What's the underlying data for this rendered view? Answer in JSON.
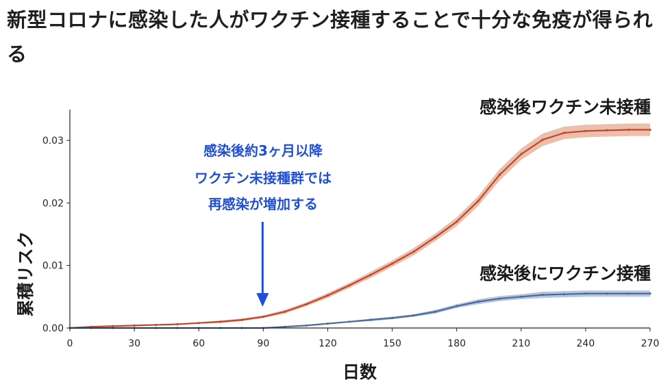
{
  "headline": "新型コロナに感染した人がワクチン接種することで十分な免疫が得られる",
  "chart_data": {
    "type": "line",
    "xlabel": "日数",
    "ylabel": "累積リスク",
    "xlim": [
      0,
      270
    ],
    "ylim": [
      0,
      0.035
    ],
    "x_ticks": [
      "0",
      "30",
      "60",
      "90",
      "120",
      "150",
      "180",
      "210",
      "240",
      "270"
    ],
    "y_ticks": [
      "0.00",
      "0.01",
      "0.02",
      "0.03"
    ],
    "grid": false,
    "x": [
      0,
      10,
      20,
      30,
      40,
      50,
      60,
      70,
      80,
      90,
      100,
      110,
      120,
      130,
      140,
      150,
      160,
      170,
      180,
      190,
      200,
      210,
      220,
      230,
      240,
      250,
      260,
      270
    ],
    "series": [
      {
        "name": "感染後ワクチン未接種",
        "color": "#c0462a",
        "band_color": "#e8b49c",
        "values": [
          0.0,
          0.0002,
          0.0003,
          0.0004,
          0.0005,
          0.0006,
          0.0008,
          0.001,
          0.0013,
          0.0018,
          0.0026,
          0.0038,
          0.0052,
          0.0068,
          0.0085,
          0.0103,
          0.0122,
          0.0145,
          0.017,
          0.0203,
          0.0245,
          0.0278,
          0.0301,
          0.0312,
          0.0315,
          0.0316,
          0.0317,
          0.0317
        ],
        "band": [
          0.0,
          0.0001,
          0.0001,
          0.0001,
          0.0001,
          0.0001,
          0.0001,
          0.0002,
          0.0002,
          0.0002,
          0.0003,
          0.0003,
          0.0004,
          0.0004,
          0.0005,
          0.0005,
          0.0006,
          0.0006,
          0.0007,
          0.0008,
          0.0009,
          0.0009,
          0.001,
          0.001,
          0.001,
          0.001,
          0.001,
          0.001
        ]
      },
      {
        "name": "感染後にワクチン接種",
        "color": "#4a6a9a",
        "band_color": "#a9bcd8",
        "values": [
          0.0,
          0.0,
          0.0,
          0.0,
          0.0,
          0.0,
          0.0,
          0.0,
          0.0,
          0.0,
          0.0002,
          0.0004,
          0.0007,
          0.001,
          0.0013,
          0.0016,
          0.002,
          0.0026,
          0.0035,
          0.0042,
          0.0047,
          0.005,
          0.0053,
          0.0054,
          0.0055,
          0.0055,
          0.0055,
          0.0055
        ],
        "band": [
          0.0,
          0.0,
          0.0,
          0.0,
          0.0,
          0.0,
          0.0,
          0.0,
          0.0,
          0.0,
          0.0001,
          0.0001,
          0.0001,
          0.0001,
          0.0002,
          0.0002,
          0.0002,
          0.0003,
          0.0003,
          0.0004,
          0.0004,
          0.0004,
          0.0005,
          0.0005,
          0.0005,
          0.0005,
          0.0005,
          0.0005
        ]
      }
    ],
    "annotation": {
      "lines": [
        "感染後約3ヶ月以降",
        "ワクチン未接種群では",
        "再感染が増加する"
      ],
      "arrow_x": 90,
      "color": "#1f4fd6"
    }
  }
}
